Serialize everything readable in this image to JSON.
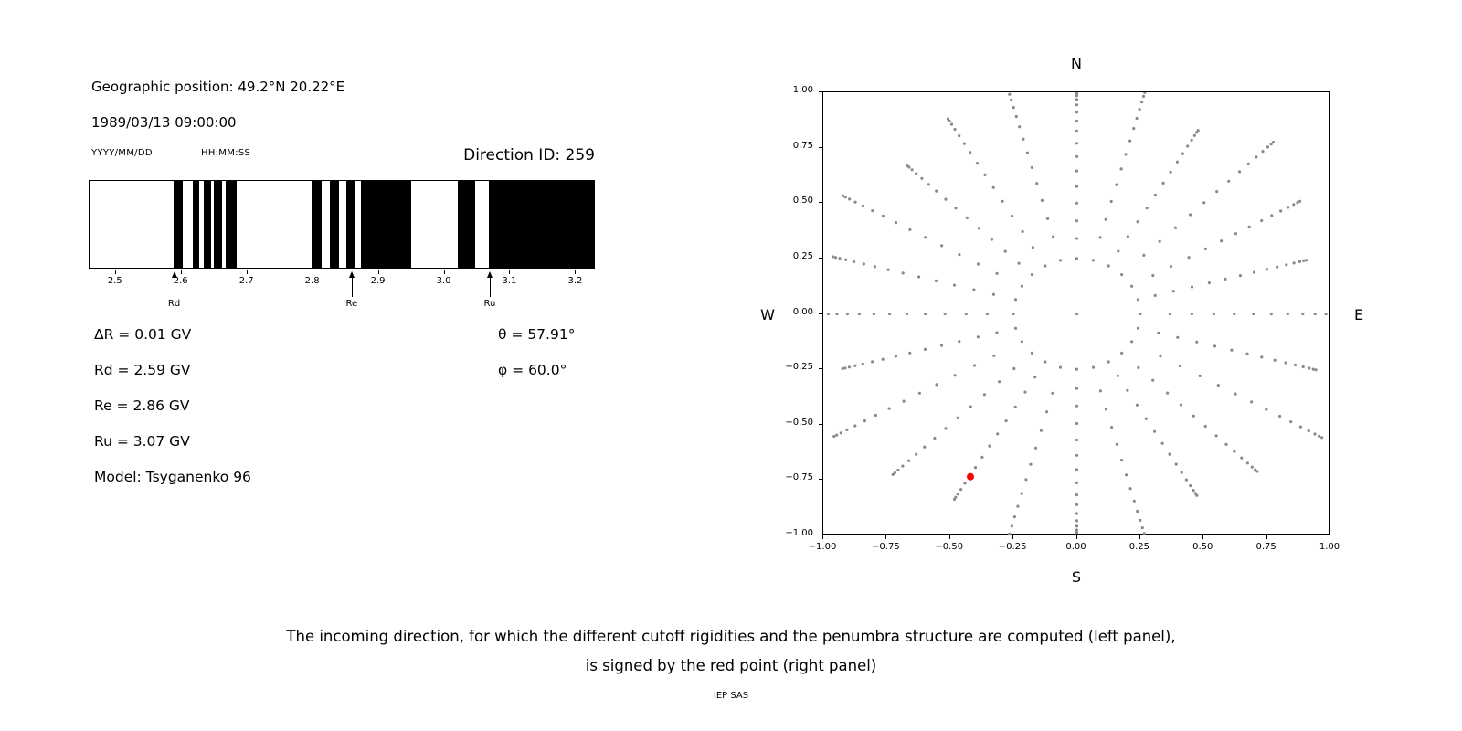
{
  "left": {
    "geo_position": "Geographic position: 49.2°N 20.22°E",
    "datetime": "1989/03/13 09:00:00",
    "date_format": "YYYY/MM/DD",
    "time_format": "HH:MM:SS",
    "direction_id": "Direction ID: 259",
    "values": [
      "ΔR = 0.01 GV",
      "Rd = 2.59 GV",
      "Re = 2.86 GV",
      "Ru = 3.07 GV",
      "Model: Tsyganenko 96"
    ],
    "angles": [
      "θ = 57.91°",
      "φ = 60.0°"
    ]
  },
  "caption": {
    "line1": "The incoming direction, for which the different cutoff rigidities and the penumbra structure are computed (left panel),",
    "line2": "is signed by the red point (right panel)",
    "credit": "IEP SAS"
  },
  "chart_data": [
    {
      "type": "barcode",
      "name": "penumbra-structure",
      "x_unit": "GV",
      "x_range": [
        2.46,
        3.23
      ],
      "x_ticks": [
        {
          "v": 2.5,
          "label": "2.5"
        },
        {
          "v": 2.6,
          "label": "2.6"
        },
        {
          "v": 2.7,
          "label": "2.7"
        },
        {
          "v": 2.8,
          "label": "2.8"
        },
        {
          "v": 2.9,
          "label": "2.9"
        },
        {
          "v": 3.0,
          "label": "3.0"
        },
        {
          "v": 3.1,
          "label": "3.1"
        },
        {
          "v": 3.2,
          "label": "3.2"
        }
      ],
      "black_intervals": [
        [
          2.588,
          2.602
        ],
        [
          2.617,
          2.628
        ],
        [
          2.634,
          2.645
        ],
        [
          2.65,
          2.662
        ],
        [
          2.668,
          2.685
        ],
        [
          2.799,
          2.814
        ],
        [
          2.827,
          2.841
        ],
        [
          2.852,
          2.866
        ],
        [
          2.874,
          2.951
        ],
        [
          3.022,
          3.049
        ],
        [
          3.07,
          3.23
        ]
      ],
      "markers": [
        {
          "label": "Rd",
          "value": 2.59
        },
        {
          "label": "Re",
          "value": 2.86
        },
        {
          "label": "Ru",
          "value": 3.07
        }
      ]
    },
    {
      "type": "scatter",
      "name": "incoming-directions",
      "xlim": [
        -1.0,
        1.0
      ],
      "ylim": [
        -1.0,
        1.0
      ],
      "x_ticks": [
        {
          "v": -1.0,
          "label": "−1.00"
        },
        {
          "v": -0.75,
          "label": "−0.75"
        },
        {
          "v": -0.5,
          "label": "−0.50"
        },
        {
          "v": -0.25,
          "label": "−0.25"
        },
        {
          "v": 0.0,
          "label": "0.00"
        },
        {
          "v": 0.25,
          "label": "0.25"
        },
        {
          "v": 0.5,
          "label": "0.50"
        },
        {
          "v": 0.75,
          "label": "0.75"
        },
        {
          "v": 1.0,
          "label": "1.00"
        }
      ],
      "y_ticks": [
        {
          "v": 1.0,
          "label": "1.00"
        },
        {
          "v": 0.75,
          "label": "0.75"
        },
        {
          "v": 0.5,
          "label": "0.50"
        },
        {
          "v": 0.25,
          "label": "0.25"
        },
        {
          "v": 0.0,
          "label": "0.00"
        },
        {
          "v": -0.25,
          "label": "−0.25"
        },
        {
          "v": -0.5,
          "label": "−0.50"
        },
        {
          "v": -0.75,
          "label": "−0.75"
        },
        {
          "v": -1.0,
          "label": "−1.00"
        }
      ],
      "compass": {
        "top": "N",
        "bottom": "S",
        "left": "W",
        "right": "E"
      },
      "grid_dots": {
        "color": "#8a8a8a",
        "dot_radius_px": 1.6,
        "azimuth_count": 24,
        "center_dot": true,
        "inner_ring_radius": 0.25,
        "spoke_radii": [
          0.34,
          0.42,
          0.5,
          0.575,
          0.645,
          0.71,
          0.77,
          0.825,
          0.87,
          0.91,
          0.943,
          0.968,
          0.985,
          0.996
        ],
        "spoke_scale": [
          1.0,
          1.05,
          0.96,
          1.1,
          1.02,
          0.94,
          1.08,
          0.98,
          1.12,
          1.01,
          0.95,
          1.06,
          0.99,
          1.09,
          0.97,
          1.03,
          1.11,
          0.96,
          1.04,
          1.0,
          1.07,
          0.95,
          1.02,
          1.06
        ]
      },
      "red_point": {
        "x": -0.42,
        "y": -0.735,
        "color": "#ff0000",
        "radius_px": 4
      }
    }
  ]
}
